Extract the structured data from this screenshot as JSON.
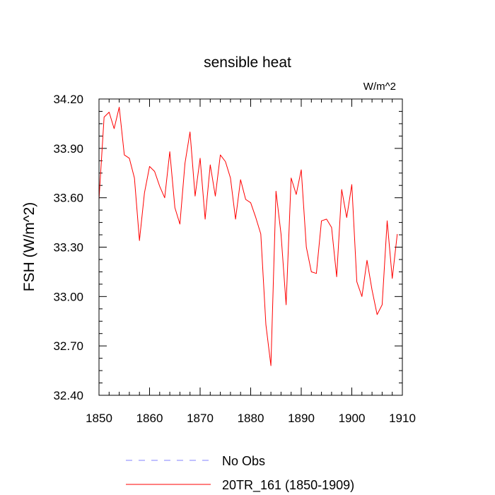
{
  "chart_data": {
    "type": "line",
    "title": "sensible heat",
    "units_label": "W/m^2",
    "ylabel": "FSH  (W/m^2)",
    "xlabel": "",
    "xlim": [
      1850,
      1910
    ],
    "ylim": [
      32.4,
      34.2
    ],
    "xticks": [
      1850,
      1860,
      1870,
      1880,
      1890,
      1900,
      1910
    ],
    "yticks": [
      "32.40",
      "32.70",
      "33.00",
      "33.30",
      "33.60",
      "33.90",
      "34.20"
    ],
    "grid": false,
    "legend_position": "bottom",
    "series": [
      {
        "name": "No Obs",
        "color": "#8080ff",
        "dash": "dashed",
        "x": [],
        "y": []
      },
      {
        "name": "20TR_161 (1850-1909)",
        "color": "#ff0000",
        "dash": "solid",
        "x": [
          1850,
          1851,
          1852,
          1853,
          1854,
          1855,
          1856,
          1857,
          1858,
          1859,
          1860,
          1861,
          1862,
          1863,
          1864,
          1865,
          1866,
          1867,
          1868,
          1869,
          1870,
          1871,
          1872,
          1873,
          1874,
          1875,
          1876,
          1877,
          1878,
          1879,
          1880,
          1881,
          1882,
          1883,
          1884,
          1885,
          1886,
          1887,
          1888,
          1889,
          1890,
          1891,
          1892,
          1893,
          1894,
          1895,
          1896,
          1897,
          1898,
          1899,
          1900,
          1901,
          1902,
          1903,
          1904,
          1905,
          1906,
          1907,
          1908,
          1909
        ],
        "y": [
          33.59,
          34.09,
          34.12,
          34.02,
          34.15,
          33.86,
          33.84,
          33.72,
          33.34,
          33.63,
          33.79,
          33.76,
          33.67,
          33.6,
          33.88,
          33.54,
          33.44,
          33.81,
          34.0,
          33.61,
          33.84,
          33.47,
          33.8,
          33.61,
          33.86,
          33.82,
          33.72,
          33.47,
          33.71,
          33.59,
          33.57,
          33.48,
          33.38,
          32.83,
          32.58,
          33.64,
          33.38,
          32.95,
          33.72,
          33.62,
          33.77,
          33.3,
          33.15,
          33.14,
          33.46,
          33.47,
          33.42,
          33.12,
          33.65,
          33.48,
          33.68,
          33.09,
          33.0,
          33.22,
          33.04,
          32.89,
          32.95,
          33.46,
          33.11,
          33.38
        ]
      }
    ]
  }
}
